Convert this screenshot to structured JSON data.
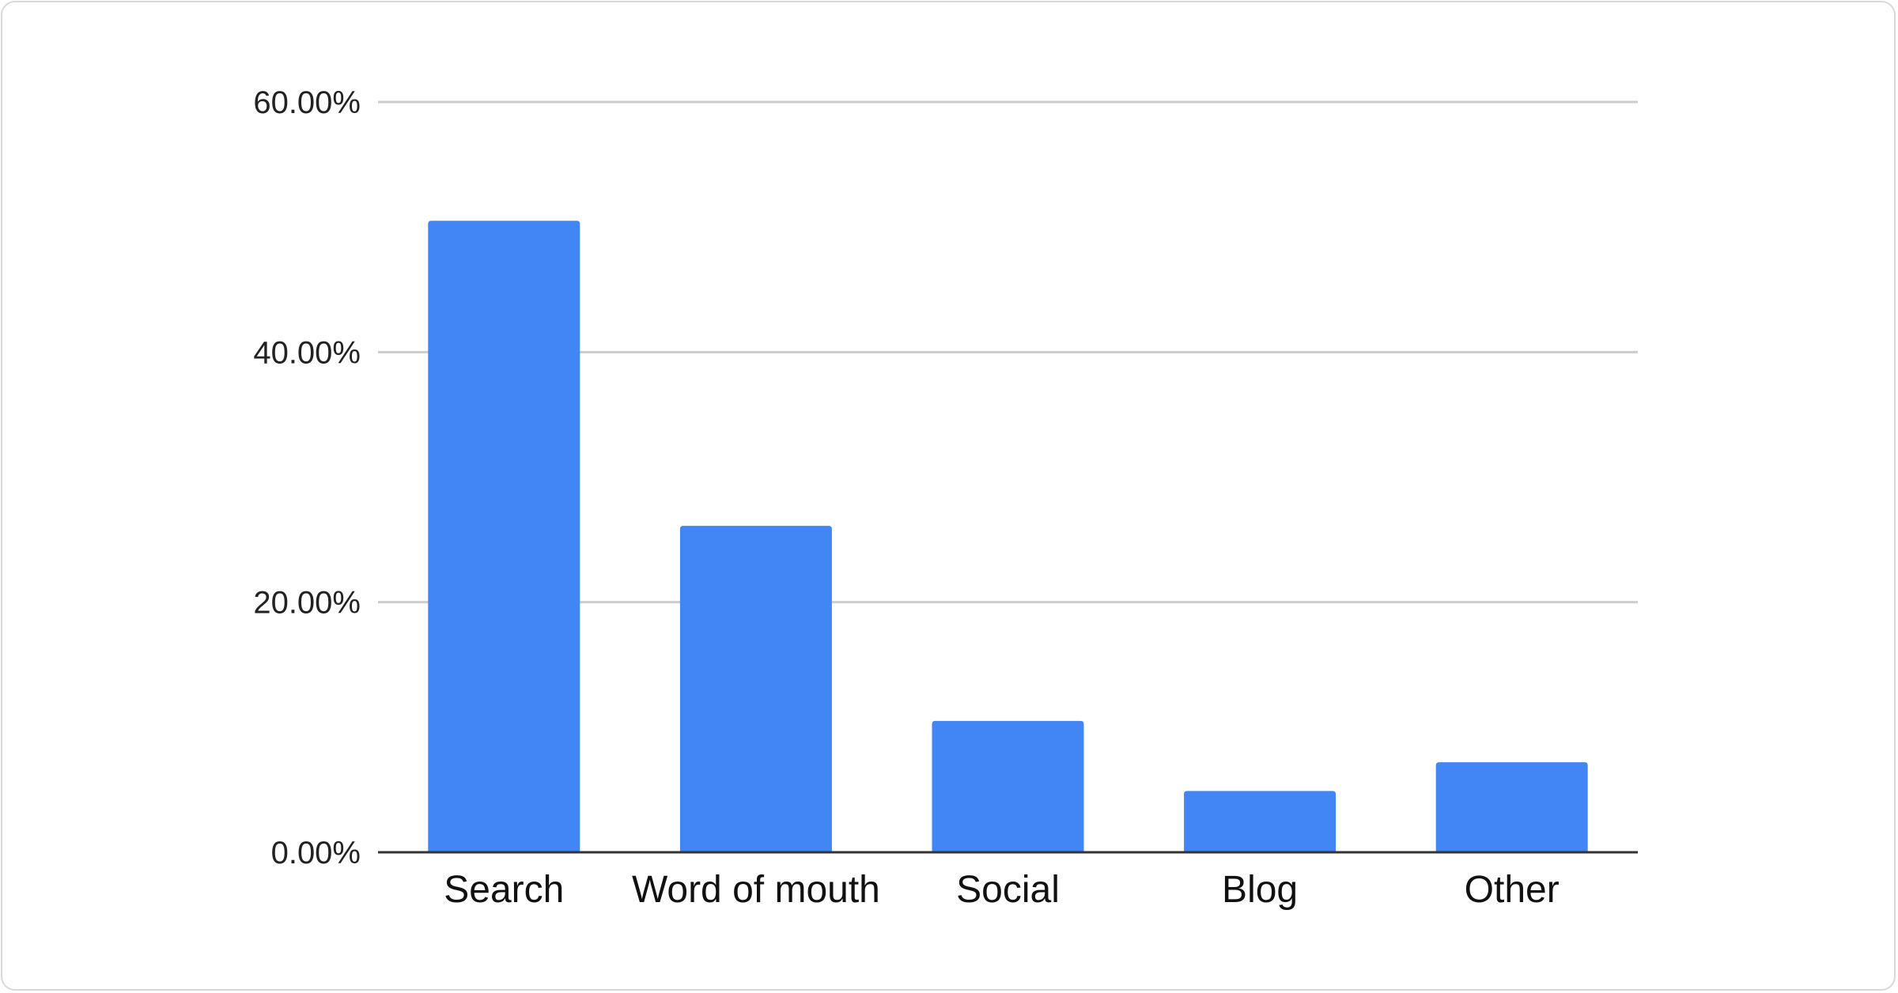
{
  "chart_data": {
    "type": "bar",
    "title": "",
    "xlabel": "",
    "ylabel": "",
    "categories": [
      "Search",
      "Word of mouth",
      "Social",
      "Blog",
      "Other"
    ],
    "values": [
      50.5,
      26.1,
      10.5,
      4.9,
      7.2
    ],
    "unit": "%",
    "ylim": [
      0,
      60
    ],
    "yticks": [
      0,
      20,
      40,
      60
    ],
    "ytick_labels": [
      "0.00%",
      "20.00%",
      "40.00%",
      "60.00%"
    ],
    "grid": true,
    "legend": "none",
    "bar_color": "#4285f4",
    "grid_color": "#cccccc",
    "axis_color": "#333333"
  }
}
